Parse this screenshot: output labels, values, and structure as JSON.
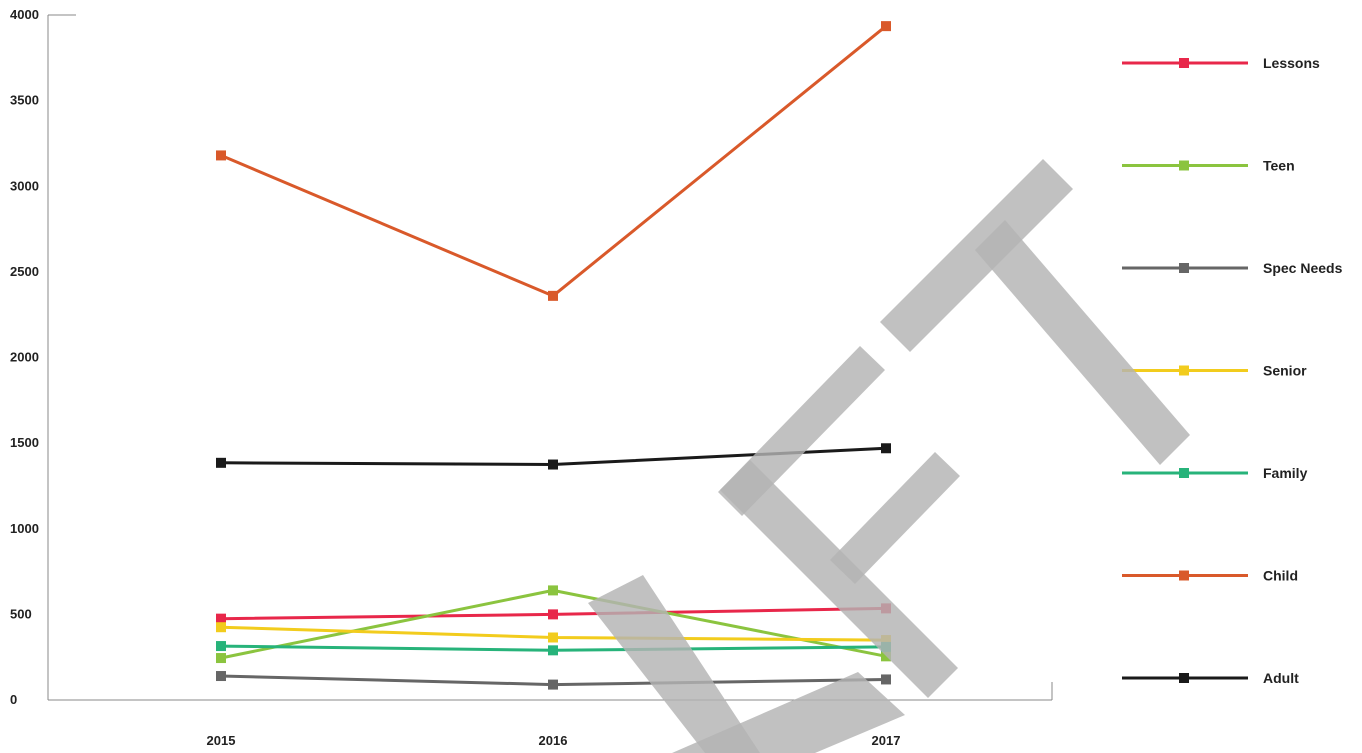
{
  "chart_data": {
    "type": "line",
    "title": "",
    "xlabel": "",
    "ylabel": "",
    "categories": [
      "2015",
      "2016",
      "2017"
    ],
    "ylim": [
      0,
      4000
    ],
    "yticks": [
      0,
      500,
      1000,
      1500,
      2000,
      2500,
      3000,
      3500,
      4000
    ],
    "grid": false,
    "legend_position": "right",
    "series": [
      {
        "name": "Lessons",
        "color": "#e8274a",
        "values": [
          475,
          500,
          535
        ]
      },
      {
        "name": "Teen",
        "color": "#8bc43f",
        "values": [
          245,
          640,
          255
        ]
      },
      {
        "name": "Spec Needs",
        "color": "#666666",
        "values": [
          140,
          90,
          120
        ]
      },
      {
        "name": "Senior",
        "color": "#f2cc1d",
        "values": [
          425,
          365,
          350
        ]
      },
      {
        "name": "Family",
        "color": "#27b37a",
        "values": [
          315,
          290,
          310
        ]
      },
      {
        "name": "Child",
        "color": "#d9592a",
        "values": [
          3180,
          2360,
          3935
        ]
      },
      {
        "name": "Adult",
        "color": "#1a1a1a",
        "values": [
          1385,
          1375,
          1470
        ]
      }
    ],
    "watermark": "DRAFT"
  }
}
